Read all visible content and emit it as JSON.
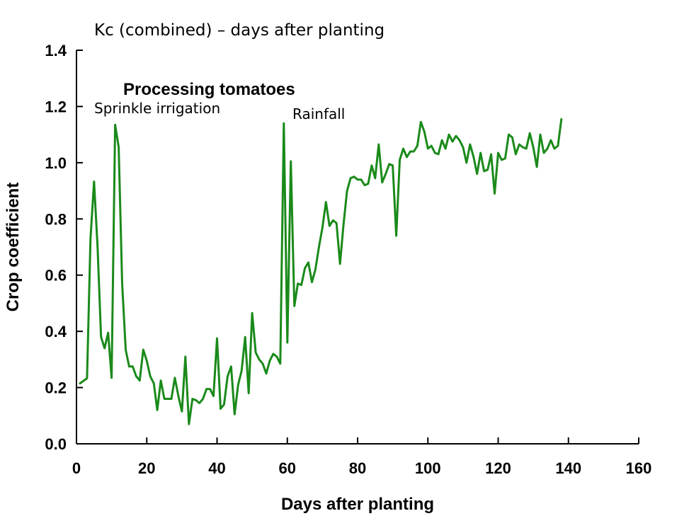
{
  "chart_data": {
    "type": "line",
    "title": "Kc (combined) – days after planting",
    "subtitle": "Processing tomatoes",
    "annotations": [
      {
        "text": "Sprinkle irrigation",
        "x": 11
      },
      {
        "text": "Rainfall",
        "x": 59
      }
    ],
    "xlabel": "Days after planting",
    "ylabel": "Crop coefficient",
    "xlim": [
      0,
      160
    ],
    "ylim": [
      0,
      1.4
    ],
    "x_ticks": [
      "0",
      "20",
      "40",
      "60",
      "80",
      "100",
      "120",
      "140",
      "160"
    ],
    "y_ticks": [
      "0.0",
      "0.2",
      "0.4",
      "0.6",
      "0.8",
      "1.0",
      "1.2",
      "1.4"
    ],
    "grid": false,
    "legend": "none",
    "series_color": "#1a8a1a",
    "series": [
      {
        "values": [
          [
            1,
            0.215
          ],
          [
            3,
            0.233
          ],
          [
            4,
            0.73
          ],
          [
            5,
            0.933
          ],
          [
            6,
            0.7
          ],
          [
            7,
            0.38
          ],
          [
            8,
            0.34
          ],
          [
            9,
            0.395
          ],
          [
            10,
            0.235
          ],
          [
            11,
            1.135
          ],
          [
            12,
            1.055
          ],
          [
            13,
            0.57
          ],
          [
            14,
            0.335
          ],
          [
            15,
            0.275
          ],
          [
            16,
            0.275
          ],
          [
            17,
            0.24
          ],
          [
            18,
            0.225
          ],
          [
            19,
            0.335
          ],
          [
            20,
            0.295
          ],
          [
            21,
            0.24
          ],
          [
            22,
            0.215
          ],
          [
            23,
            0.12
          ],
          [
            24,
            0.225
          ],
          [
            25,
            0.16
          ],
          [
            26,
            0.16
          ],
          [
            27,
            0.16
          ],
          [
            28,
            0.235
          ],
          [
            29,
            0.17
          ],
          [
            30,
            0.115
          ],
          [
            31,
            0.31
          ],
          [
            32,
            0.07
          ],
          [
            33,
            0.16
          ],
          [
            34,
            0.155
          ],
          [
            35,
            0.145
          ],
          [
            36,
            0.16
          ],
          [
            37,
            0.195
          ],
          [
            38,
            0.195
          ],
          [
            39,
            0.17
          ],
          [
            40,
            0.375
          ],
          [
            41,
            0.125
          ],
          [
            42,
            0.14
          ],
          [
            43,
            0.24
          ],
          [
            44,
            0.275
          ],
          [
            45,
            0.105
          ],
          [
            46,
            0.21
          ],
          [
            47,
            0.26
          ],
          [
            48,
            0.38
          ],
          [
            49,
            0.18
          ],
          [
            50,
            0.465
          ],
          [
            51,
            0.325
          ],
          [
            52,
            0.3
          ],
          [
            53,
            0.285
          ],
          [
            54,
            0.25
          ],
          [
            55,
            0.295
          ],
          [
            56,
            0.32
          ],
          [
            57,
            0.31
          ],
          [
            58,
            0.285
          ],
          [
            59,
            1.14
          ],
          [
            60,
            0.36
          ],
          [
            61,
            1.005
          ],
          [
            62,
            0.49
          ],
          [
            63,
            0.57
          ],
          [
            64,
            0.565
          ],
          [
            65,
            0.625
          ],
          [
            66,
            0.645
          ],
          [
            67,
            0.575
          ],
          [
            68,
            0.62
          ],
          [
            69,
            0.7
          ],
          [
            70,
            0.77
          ],
          [
            71,
            0.86
          ],
          [
            72,
            0.775
          ],
          [
            73,
            0.795
          ],
          [
            74,
            0.785
          ],
          [
            75,
            0.64
          ],
          [
            76,
            0.78
          ],
          [
            77,
            0.9
          ],
          [
            78,
            0.945
          ],
          [
            79,
            0.95
          ],
          [
            80,
            0.94
          ],
          [
            81,
            0.94
          ],
          [
            82,
            0.92
          ],
          [
            83,
            0.925
          ],
          [
            84,
            0.99
          ],
          [
            85,
            0.945
          ],
          [
            86,
            1.065
          ],
          [
            87,
            0.93
          ],
          [
            88,
            0.96
          ],
          [
            89,
            0.995
          ],
          [
            90,
            0.99
          ],
          [
            91,
            0.74
          ],
          [
            92,
            1.01
          ],
          [
            93,
            1.05
          ],
          [
            94,
            1.02
          ],
          [
            95,
            1.04
          ],
          [
            96,
            1.04
          ],
          [
            97,
            1.06
          ],
          [
            98,
            1.145
          ],
          [
            99,
            1.11
          ],
          [
            100,
            1.05
          ],
          [
            101,
            1.06
          ],
          [
            102,
            1.035
          ],
          [
            103,
            1.03
          ],
          [
            104,
            1.08
          ],
          [
            105,
            1.05
          ],
          [
            106,
            1.1
          ],
          [
            107,
            1.075
          ],
          [
            108,
            1.095
          ],
          [
            109,
            1.08
          ],
          [
            110,
            1.055
          ],
          [
            111,
            1.0
          ],
          [
            112,
            1.065
          ],
          [
            113,
            1.02
          ],
          [
            114,
            0.96
          ],
          [
            115,
            1.035
          ],
          [
            116,
            0.97
          ],
          [
            117,
            0.975
          ],
          [
            118,
            1.03
          ],
          [
            119,
            0.89
          ],
          [
            120,
            1.035
          ],
          [
            121,
            1.01
          ],
          [
            122,
            1.015
          ],
          [
            123,
            1.1
          ],
          [
            124,
            1.09
          ],
          [
            125,
            1.03
          ],
          [
            126,
            1.065
          ],
          [
            127,
            1.055
          ],
          [
            128,
            1.05
          ],
          [
            129,
            1.105
          ],
          [
            130,
            1.055
          ],
          [
            131,
            0.985
          ],
          [
            132,
            1.1
          ],
          [
            133,
            1.035
          ],
          [
            134,
            1.05
          ],
          [
            135,
            1.08
          ],
          [
            136,
            1.05
          ],
          [
            137,
            1.06
          ],
          [
            138,
            1.155
          ]
        ]
      }
    ]
  }
}
